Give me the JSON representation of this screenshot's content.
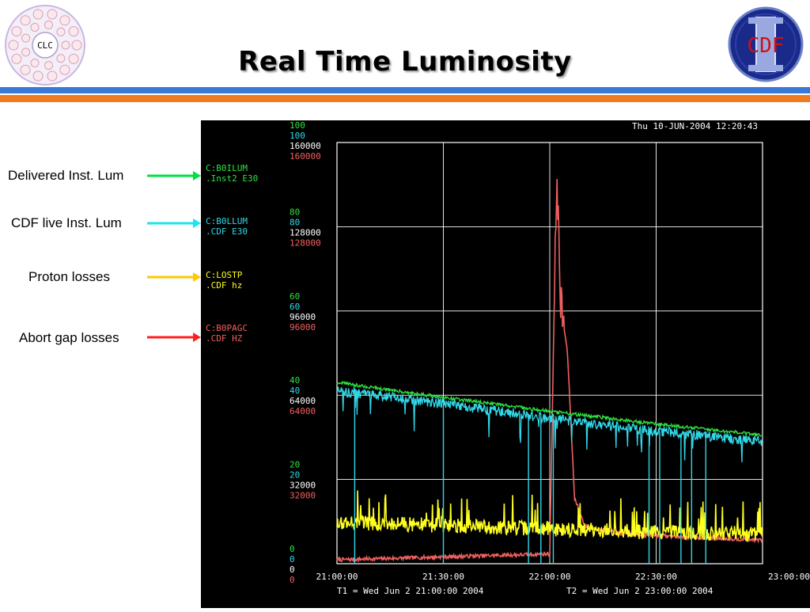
{
  "slide": {
    "title": "Real Time Luminosity",
    "logo_left_text": "CLC",
    "logo_right_text": "CDF",
    "colors": {
      "band_blue": "#3a78d8",
      "band_orange": "#f07a1e"
    }
  },
  "annotations": [
    {
      "text": "Delivered Inst. Lum",
      "color": "#00e040"
    },
    {
      "text": "CDF live Inst. Lum",
      "color": "#19e6ee"
    },
    {
      "text": "Proton losses",
      "color": "#ffc800"
    },
    {
      "text": "Abort gap losses",
      "color": "#ff2020"
    }
  ],
  "chart_data": {
    "type": "line",
    "timestamp": "Thu 10-JUN-2004 12:20:43",
    "t1_label": "T1 = Wed Jun  2 21:00:00 2004",
    "t2_label": "T2 = Wed Jun  2 23:00:00 2004",
    "x_ticks": [
      "21:00:00",
      "21:30:00",
      "22:00:00",
      "22:30:00",
      "23:00:00"
    ],
    "x_range": [
      "21:00:00",
      "23:00:00"
    ],
    "grid": true,
    "y_tick_groups": [
      [
        "100",
        "100",
        "160000",
        "160000"
      ],
      [
        "80",
        "80",
        "128000",
        "128000"
      ],
      [
        "60",
        "60",
        "96000",
        "96000"
      ],
      [
        "40",
        "40",
        "64000",
        "64000"
      ],
      [
        "20",
        "20",
        "32000",
        "32000"
      ],
      [
        "0",
        "0",
        "0",
        "0"
      ]
    ],
    "series": [
      {
        "name": "C:B0ILUM",
        "unit_line": ".Inst2  E30",
        "color": "#30e040",
        "ylim": [
          0,
          100
        ],
        "x": [
          "21:00:00",
          "21:30:00",
          "22:00:00",
          "22:30:00",
          "23:00:00"
        ],
        "values": [
          43,
          39.5,
          36.2,
          33.2,
          30.5
        ]
      },
      {
        "name": "C:B0LLUM",
        "unit_line": ".CDF    E30",
        "color": "#30d8e8",
        "ylim": [
          0,
          100
        ],
        "x": [
          "21:00:00",
          "21:30:00",
          "22:00:00",
          "22:30:00",
          "23:00:00"
        ],
        "values": [
          41,
          38,
          34.5,
          31.5,
          29
        ]
      },
      {
        "name": "C:LOSTP",
        "unit_line": ".CDF       hz",
        "color": "#ffff20",
        "ylim": [
          0,
          160000
        ],
        "x": [
          "21:00:00",
          "21:30:00",
          "22:00:00",
          "22:30:00",
          "23:00:00"
        ],
        "values": [
          15800,
          14500,
          13200,
          12000,
          11000
        ]
      },
      {
        "name": "C:B0PAGC",
        "unit_line": ".CDF    HZ",
        "color": "#f06060",
        "ylim": [
          0,
          160000
        ],
        "x": [
          "21:00:00",
          "21:20:00",
          "21:40:00",
          "21:55:00",
          "22:00:00",
          "22:02:00",
          "22:03:00",
          "22:05:00",
          "22:07:00",
          "22:10:00",
          "22:20:00",
          "22:40:00",
          "23:00:00"
        ],
        "values": [
          1500,
          2200,
          3000,
          3500,
          3800,
          150000,
          100000,
          80000,
          25000,
          14000,
          11500,
          10000,
          9000
        ]
      }
    ]
  }
}
